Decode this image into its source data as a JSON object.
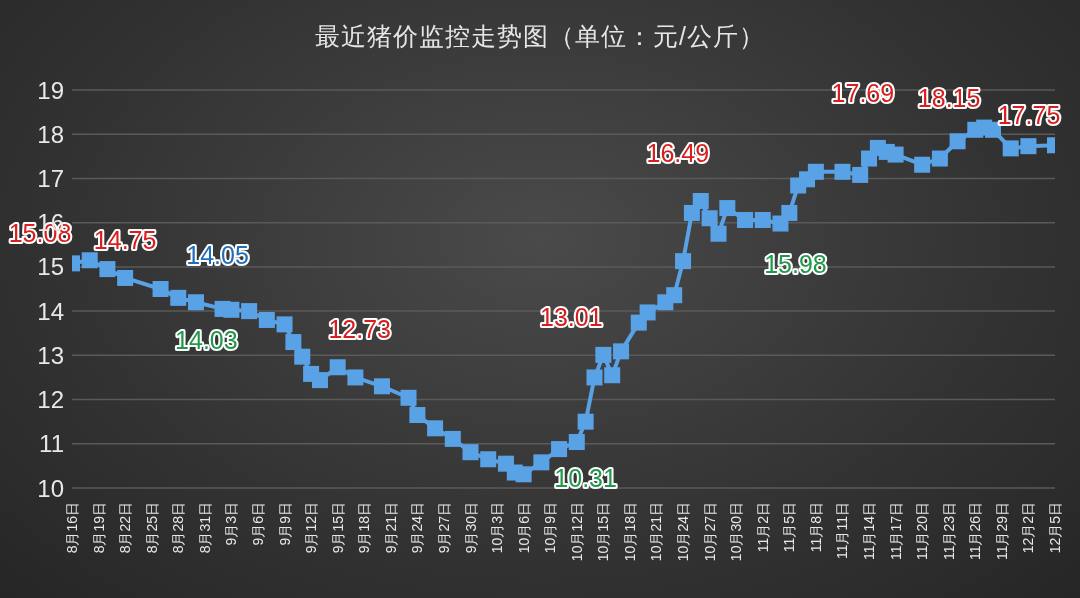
{
  "chart_data": {
    "type": "line",
    "title": "最近猪价监控走势图（单位：元/公斤）",
    "x": [
      "--08-16",
      "--08-18",
      "--08-20",
      "--08-22",
      "--08-26",
      "--08-28",
      "--08-30",
      "--09-02",
      "--09-03",
      "--09-05",
      "--09-07",
      "--09-09",
      "--09-10",
      "--09-11",
      "--09-12",
      "--09-13",
      "--09-15",
      "--09-17",
      "--09-20",
      "--09-23",
      "--09-24",
      "--09-26",
      "--09-28",
      "--09-30",
      "--10-02",
      "--10-04",
      "--10-05",
      "--10-06",
      "--10-08",
      "--10-10",
      "--10-12",
      "--10-13",
      "--10-14",
      "--10-15",
      "--10-16",
      "--10-17",
      "--10-19",
      "--10-20",
      "--10-22",
      "--10-23",
      "--10-24",
      "--10-25",
      "--10-26",
      "--10-27",
      "--10-28",
      "--10-29",
      "--10-31",
      "--11-02",
      "--11-04",
      "--11-05",
      "--11-06",
      "--11-07",
      "--11-08",
      "--11-11",
      "--11-13",
      "--11-14",
      "--11-15",
      "--11-16",
      "--11-17",
      "--11-20",
      "--11-22",
      "--11-24",
      "--11-26",
      "--11-27",
      "--11-28",
      "--11-30",
      "--12-02",
      "--12-05"
    ],
    "series": [
      {
        "color": "#5aa2e6",
        "values": [
          15.08,
          15.15,
          14.95,
          14.75,
          14.5,
          14.3,
          14.2,
          14.05,
          14.03,
          14.0,
          13.8,
          13.7,
          13.3,
          12.97,
          12.58,
          12.44,
          12.73,
          12.5,
          12.3,
          12.04,
          11.65,
          11.35,
          11.11,
          10.81,
          10.65,
          10.55,
          10.35,
          10.31,
          10.58,
          10.88,
          11.04,
          11.5,
          12.5,
          13.01,
          12.55,
          13.09,
          13.74,
          13.97,
          14.2,
          14.36,
          15.13,
          16.22,
          16.49,
          16.1,
          15.75,
          16.33,
          16.06,
          16.06,
          15.98,
          16.22,
          16.84,
          16.98,
          17.15,
          17.15,
          17.08,
          17.45,
          17.69,
          17.6,
          17.54,
          17.31,
          17.45,
          17.84,
          18.1,
          18.15,
          18.1,
          17.68,
          17.73,
          17.75
        ]
      }
    ],
    "xlim": [
      "--08-16",
      "--12-05"
    ],
    "xticks": [
      {
        "value": "--08-16",
        "label": "8月16日"
      },
      {
        "value": "--08-19",
        "label": "8月19日"
      },
      {
        "value": "--08-22",
        "label": "8月22日"
      },
      {
        "value": "--08-25",
        "label": "8月25日"
      },
      {
        "value": "--08-28",
        "label": "8月28日"
      },
      {
        "value": "--08-31",
        "label": "8月31日"
      },
      {
        "value": "--09-03",
        "label": "9月3日"
      },
      {
        "value": "--09-06",
        "label": "9月6日"
      },
      {
        "value": "--09-09",
        "label": "9月9日"
      },
      {
        "value": "--09-12",
        "label": "9月12日"
      },
      {
        "value": "--09-15",
        "label": "9月15日"
      },
      {
        "value": "--09-18",
        "label": "9月18日"
      },
      {
        "value": "--09-21",
        "label": "9月21日"
      },
      {
        "value": "--09-24",
        "label": "9月24日"
      },
      {
        "value": "--09-27",
        "label": "9月27日"
      },
      {
        "value": "--09-30",
        "label": "9月30日"
      },
      {
        "value": "--10-03",
        "label": "10月3日"
      },
      {
        "value": "--10-06",
        "label": "10月6日"
      },
      {
        "value": "--10-09",
        "label": "10月9日"
      },
      {
        "value": "--10-12",
        "label": "10月12日"
      },
      {
        "value": "--10-15",
        "label": "10月15日"
      },
      {
        "value": "--10-18",
        "label": "10月18日"
      },
      {
        "value": "--10-21",
        "label": "10月21日"
      },
      {
        "value": "--10-24",
        "label": "10月24日"
      },
      {
        "value": "--10-27",
        "label": "10月27日"
      },
      {
        "value": "--10-30",
        "label": "10月30日"
      },
      {
        "value": "--11-02",
        "label": "11月2日"
      },
      {
        "value": "--11-05",
        "label": "11月5日"
      },
      {
        "value": "--11-08",
        "label": "11月8日"
      },
      {
        "value": "--11-11",
        "label": "11月11日"
      },
      {
        "value": "--11-14",
        "label": "11月14日"
      },
      {
        "value": "--11-17",
        "label": "11月17日"
      },
      {
        "value": "--11-20",
        "label": "11月20日"
      },
      {
        "value": "--11-23",
        "label": "11月23日"
      },
      {
        "value": "--11-26",
        "label": "11月26日"
      },
      {
        "value": "--11-29",
        "label": "11月29日"
      },
      {
        "value": "--12-02",
        "label": "12月2日"
      },
      {
        "value": "--12-05",
        "label": "12月5日"
      }
    ],
    "ylim": [
      10,
      19
    ],
    "yticks": [
      10,
      11,
      12,
      13,
      14,
      15,
      16,
      17,
      18,
      19
    ],
    "grid": "y",
    "legend": false,
    "marker": "square",
    "line_style": "solid",
    "annotations": [
      {
        "text": "15.08",
        "x": "--08-16",
        "y": 15.08
      },
      {
        "text": "14.75",
        "x": "--08-22",
        "y": 14.75
      },
      {
        "text": "14.05",
        "x": "--09-02",
        "y": 14.05
      },
      {
        "text": "14.03",
        "x": "--09-03",
        "y": 14.03
      },
      {
        "text": "12.73",
        "x": "--09-15",
        "y": 12.73
      },
      {
        "text": "10.31",
        "x": "--10-06",
        "y": 10.31
      },
      {
        "text": "13.01",
        "x": "--10-15",
        "y": 13.01
      },
      {
        "text": "16.49",
        "x": "--10-26",
        "y": 16.49
      },
      {
        "text": "15.98",
        "x": "--11-04",
        "y": 15.98
      },
      {
        "text": "17.69",
        "x": "--11-15",
        "y": 17.69
      },
      {
        "text": "18.15",
        "x": "--11-27",
        "y": 18.15
      },
      {
        "text": "17.75",
        "x": "--12-05",
        "y": 17.75
      }
    ]
  }
}
